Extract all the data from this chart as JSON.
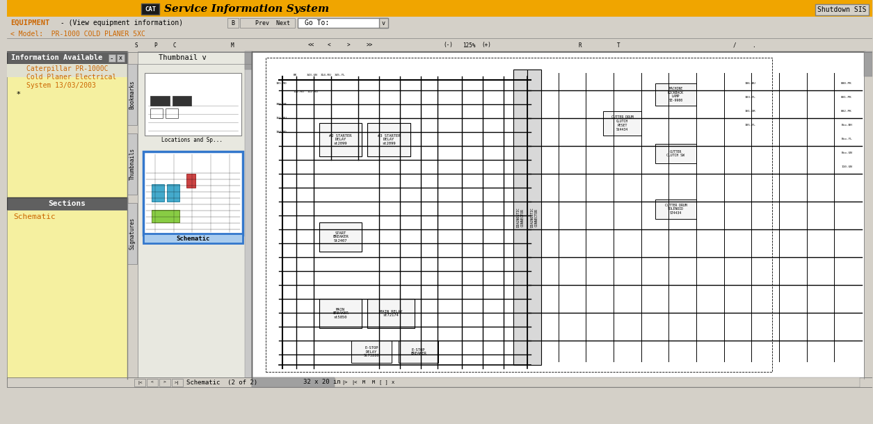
{
  "title": "Service Information System",
  "cat_label": "CAT",
  "shutdown_btn": "Shutdown SIS",
  "equipment_text": "EQUIPMENT",
  "equipment_sub": " - (View equipment information)",
  "model_text": "< Model:  PR-1000 COLD PLANER 5XC",
  "info_available": "Information Available",
  "sections_label": "Sections",
  "schematic_link": "Schematic",
  "thumbnail_link": "Thumbnail",
  "sidebar_link1": "Caterpillar PR-1000C",
  "sidebar_link2": "Cold Planer Electrical",
  "sidebar_link3": "System 13/03/2003",
  "goto_label": "Go To:",
  "zoom_label": "125%",
  "schematic_footer": "Schematic  (2 of 2)",
  "schematic_size": "32 x 20 in",
  "header_bg": "#F0A500",
  "info_panel_bg": "#F5F0A0",
  "info_header_bg": "#606060",
  "info_header_fg": "#FFFFFF",
  "sections_bg": "#606060",
  "sections_fg": "#FFFFFF",
  "link_color": "#CC6600",
  "equipment_color": "#CC6600",
  "toolbar_bg": "#D4D0C8",
  "schematic_bg": "#FFFFFF",
  "cat_box_bg": "#1a1a1a",
  "cat_box_fg": "#FFFFFF"
}
